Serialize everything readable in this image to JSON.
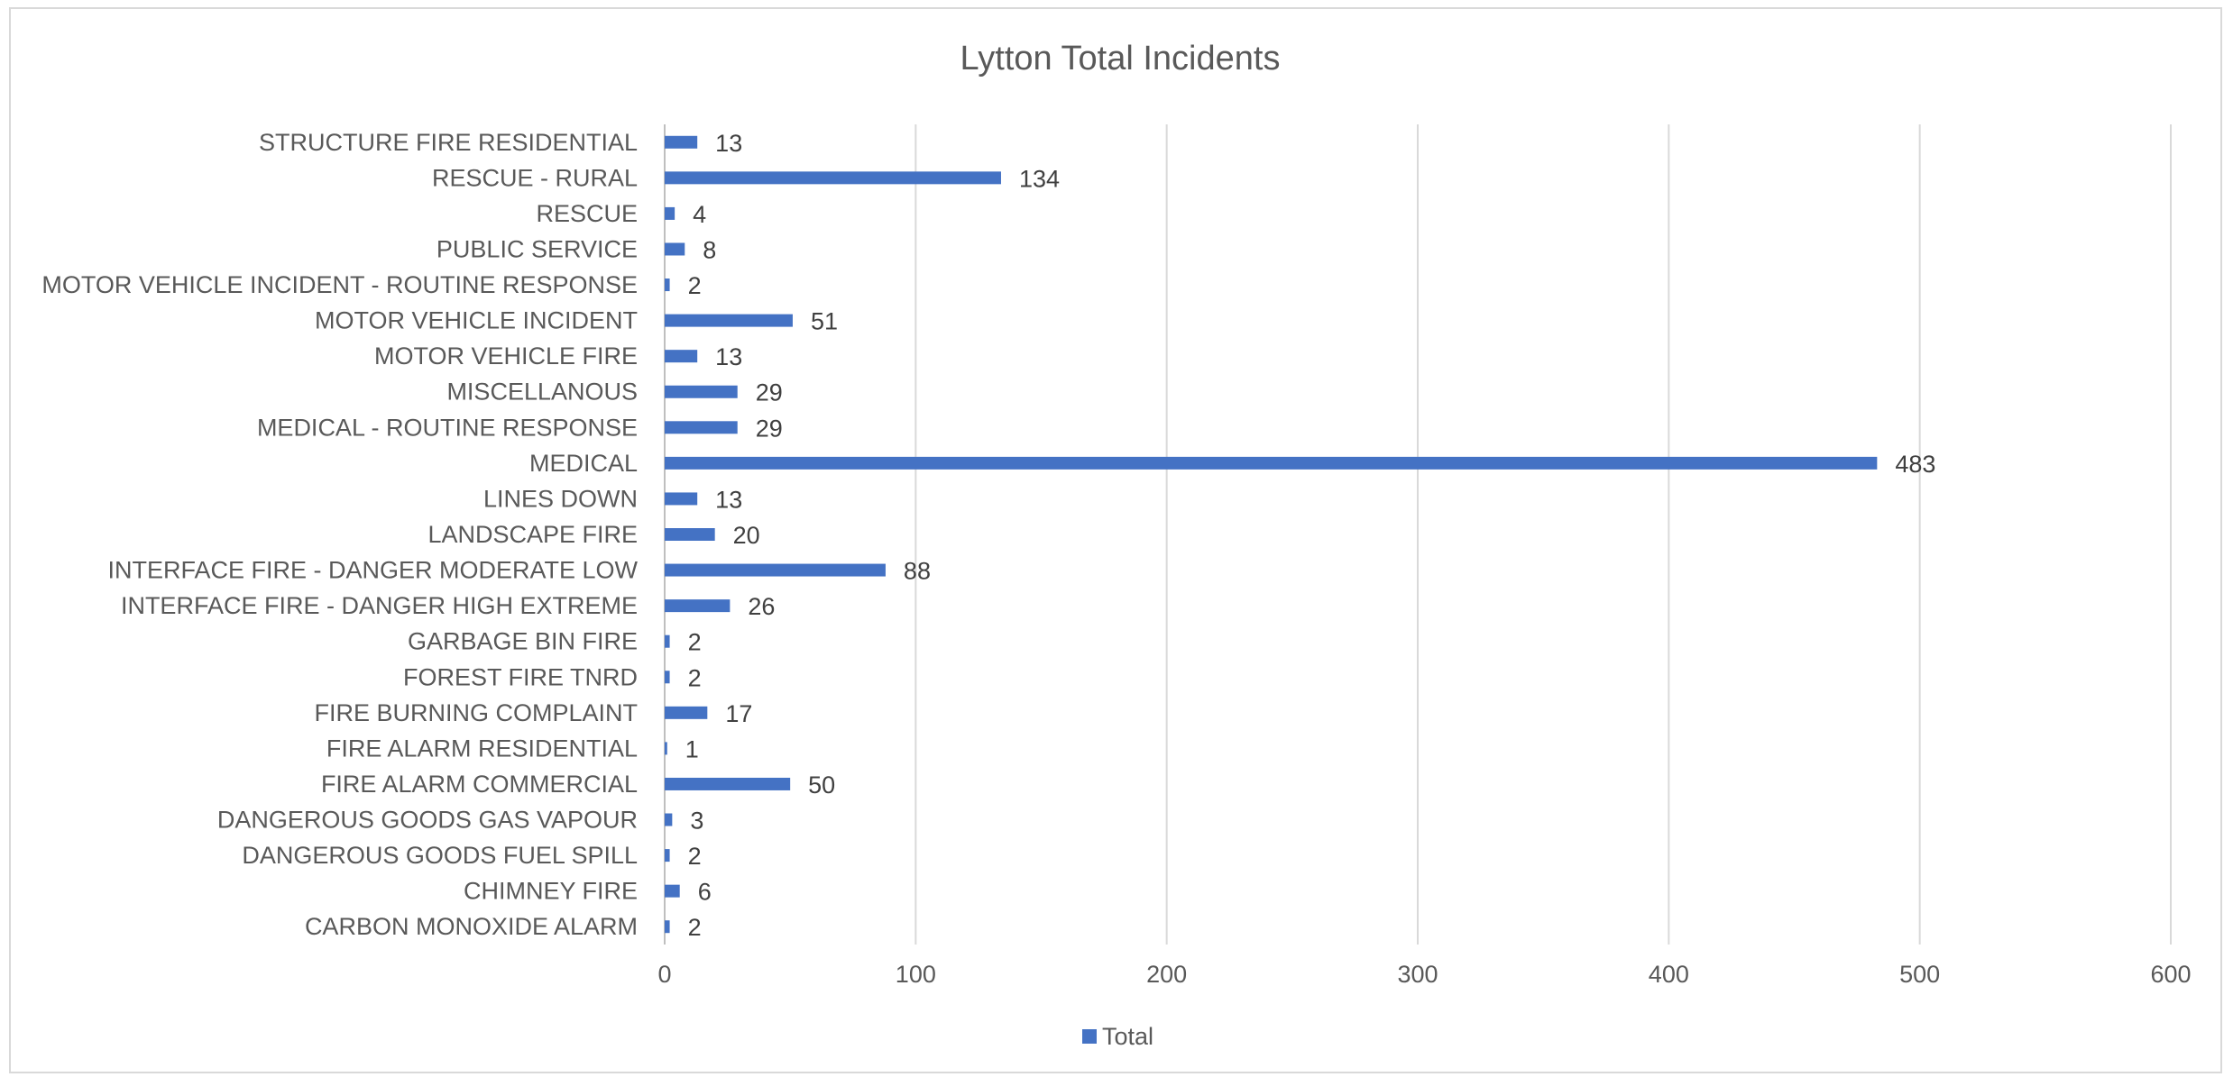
{
  "chart_data": {
    "type": "bar",
    "orientation": "horizontal",
    "title": "Lytton Total Incidents",
    "categories": [
      "STRUCTURE FIRE RESIDENTIAL",
      "RESCUE - RURAL",
      "RESCUE",
      "PUBLIC SERVICE",
      "MOTOR VEHICLE INCIDENT - ROUTINE RESPONSE",
      "MOTOR VEHICLE INCIDENT",
      "MOTOR VEHICLE FIRE",
      "MISCELLANOUS",
      "MEDICAL - ROUTINE RESPONSE",
      "MEDICAL",
      "LINES DOWN",
      "LANDSCAPE FIRE",
      "INTERFACE FIRE - DANGER MODERATE LOW",
      "INTERFACE FIRE - DANGER HIGH EXTREME",
      "GARBAGE BIN FIRE",
      "FOREST FIRE TNRD",
      "FIRE BURNING COMPLAINT",
      "FIRE ALARM RESIDENTIAL",
      "FIRE ALARM COMMERCIAL",
      "DANGEROUS GOODS GAS VAPOUR",
      "DANGEROUS GOODS FUEL SPILL",
      "CHIMNEY FIRE",
      "CARBON MONOXIDE ALARM"
    ],
    "series": [
      {
        "name": "Total",
        "color": "#4472c4",
        "values": [
          13,
          134,
          4,
          8,
          2,
          51,
          13,
          29,
          29,
          483,
          13,
          20,
          88,
          26,
          2,
          2,
          17,
          1,
          50,
          3,
          2,
          6,
          2
        ]
      }
    ],
    "xlim": [
      0,
      600
    ],
    "xticks": [
      "0",
      "100",
      "200",
      "300",
      "400",
      "500",
      "600"
    ],
    "grid": true,
    "legend_position": "bottom",
    "data_labels": true
  }
}
